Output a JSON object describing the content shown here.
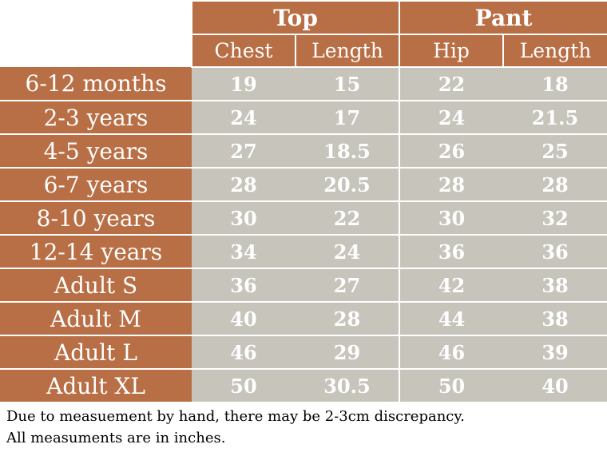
{
  "header": {
    "groups": [
      {
        "label": "Top",
        "columns": [
          "Chest",
          "Length"
        ]
      },
      {
        "label": "Pant",
        "columns": [
          "Hip",
          "Length"
        ]
      }
    ]
  },
  "rows": [
    {
      "label": "6-12 months",
      "values": [
        "19",
        "15",
        "22",
        "18"
      ]
    },
    {
      "label": "2-3 years",
      "values": [
        "24",
        "17",
        "24",
        "21.5"
      ]
    },
    {
      "label": "4-5 years",
      "values": [
        "27",
        "18.5",
        "26",
        "25"
      ]
    },
    {
      "label": "6-7 years",
      "values": [
        "28",
        "20.5",
        "28",
        "28"
      ]
    },
    {
      "label": "8-10 years",
      "values": [
        "30",
        "22",
        "30",
        "32"
      ]
    },
    {
      "label": "12-14 years",
      "values": [
        "34",
        "24",
        "36",
        "36"
      ]
    },
    {
      "label": "Adult S",
      "values": [
        "36",
        "27",
        "42",
        "38"
      ]
    },
    {
      "label": "Adult M",
      "values": [
        "40",
        "28",
        "44",
        "38"
      ]
    },
    {
      "label": "Adult L",
      "values": [
        "46",
        "29",
        "46",
        "39"
      ]
    },
    {
      "label": "Adult XL",
      "values": [
        "50",
        "30.5",
        "50",
        "40"
      ]
    }
  ],
  "notes": [
    "Due to measuement by hand, there may be 2-3cm discrepancy.",
    "All measuments are in inches."
  ],
  "colors": {
    "header_bg": "#b86f45",
    "value_bg": "#c6c4bb",
    "text_light": "#ffffff"
  }
}
